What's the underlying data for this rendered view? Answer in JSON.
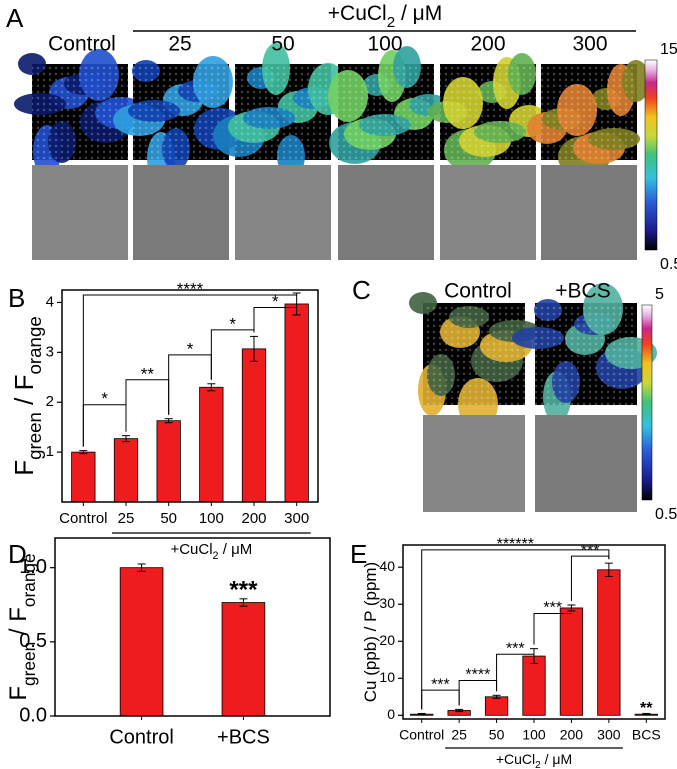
{
  "image_panels": [
    {
      "letter": "A",
      "header": [
        "+CuCl",
        "2",
        " / μM"
      ],
      "columns": [
        "Control",
        "25",
        "50",
        "100",
        "200",
        "300"
      ],
      "colorbar": [
        "15",
        "0.5"
      ]
    },
    {
      "letter": "C",
      "columns": [
        "Control",
        "+BCS"
      ],
      "colorbar": [
        "5",
        "0.5"
      ]
    }
  ],
  "chart_data": [
    {
      "type": "bar",
      "letter": "B",
      "ylabel": [
        {
          "text": "F"
        },
        {
          "text": "green",
          "sub": true
        },
        {
          "text": " / F"
        },
        {
          "text": "orange",
          "sub": true
        }
      ],
      "xlabel": [
        "+CuCl",
        "2",
        " / μM"
      ],
      "categories": [
        "Control",
        "25",
        "50",
        "100",
        "200",
        "300"
      ],
      "values": [
        1.0,
        1.27,
        1.63,
        2.3,
        3.07,
        3.97
      ],
      "errors": [
        0.03,
        0.06,
        0.04,
        0.07,
        0.25,
        0.22
      ],
      "annotations": [
        "*",
        "**",
        "*",
        "*",
        "*",
        "****"
      ],
      "color": "#ee1c1c",
      "ylim": [
        0,
        4.25
      ],
      "yticks": [
        1,
        2,
        3,
        4
      ]
    },
    {
      "type": "bar",
      "letter": "D",
      "ylabel": [
        {
          "text": "F"
        },
        {
          "text": "green",
          "sub": true
        },
        {
          "text": " / F"
        },
        {
          "text": "orange",
          "sub": true
        }
      ],
      "categories": [
        "Control",
        "+BCS"
      ],
      "values": [
        1.0,
        0.765
      ],
      "errors": [
        0.025,
        0.025
      ],
      "annotations": [
        "***"
      ],
      "color": "#ee1c1c",
      "ylim": [
        0,
        1.2
      ],
      "yticks": [
        {
          "value": 0,
          "label": "0.0"
        },
        {
          "value": 0.5,
          "label": "0.5"
        },
        {
          "value": 1,
          "label": "1.0"
        }
      ]
    },
    {
      "type": "bar",
      "letter": "E",
      "ylabel": [
        {
          "text": "Cu (ppb) / P (ppm)"
        }
      ],
      "xlabel": [
        "+CuCl",
        "2",
        " / μM"
      ],
      "categories": [
        "Control",
        "25",
        "50",
        "100",
        "200",
        "300",
        "BCS"
      ],
      "values": [
        0.3,
        1.3,
        5.0,
        16.0,
        29.0,
        39.3,
        0.3
      ],
      "errors": [
        0.2,
        0.3,
        0.4,
        2.0,
        0.8,
        1.8,
        0.2
      ],
      "annotations": [
        "***",
        "****",
        "***",
        "***",
        "***",
        "******",
        "**"
      ],
      "color": "#ee1c1c",
      "ylim": [
        -1,
        46
      ],
      "yticks": [
        0,
        10,
        20,
        30,
        40
      ]
    }
  ]
}
